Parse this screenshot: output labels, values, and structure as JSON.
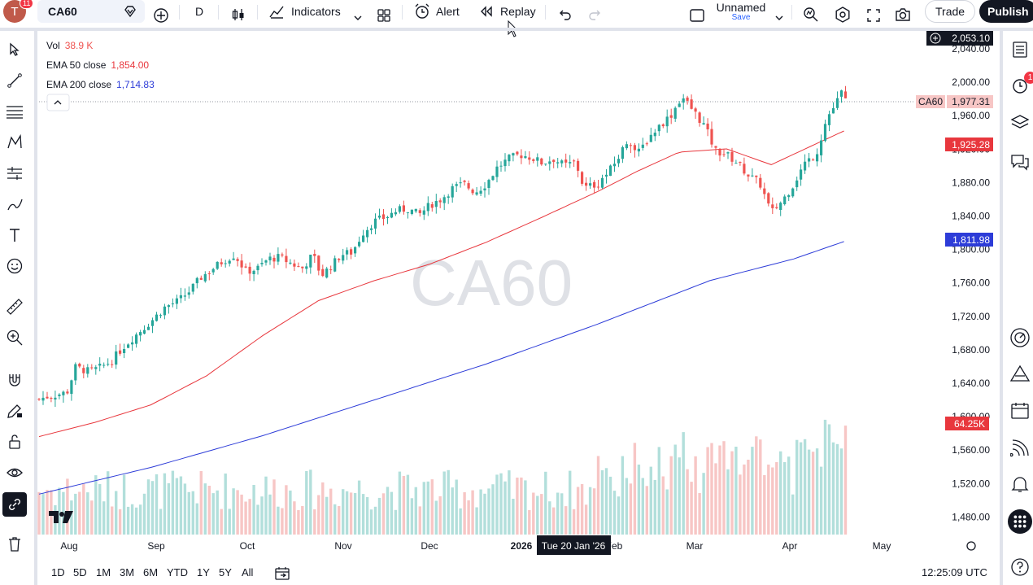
{
  "topbar": {
    "avatar_letter": "T",
    "avatar_badge": "11",
    "symbol": "CA60",
    "interval": "D",
    "indicators_label": "Indicators",
    "alert_label": "Alert",
    "replay_label": "Replay",
    "layout_name": "Unnamed",
    "layout_save": "Save",
    "trade_label": "Trade",
    "publish_label": "Publish"
  },
  "legend": {
    "vol_label": "Vol",
    "vol_value": "38.9 K",
    "ema50_label": "EMA 50 close",
    "ema50_value": "1,854.00",
    "ema200_label": "EMA 200 close",
    "ema200_value": "1,714.83"
  },
  "watermark": "CA60",
  "colors": {
    "up": "#26a69a",
    "down": "#ef5350",
    "ema50": "#e8373d",
    "ema200": "#2d3cd8",
    "vol_up": "#b2dfdb",
    "vol_down": "#f7c6c5"
  },
  "price_axis": {
    "ticks": [
      "2,040.00",
      "2,000.00",
      "1,960.00",
      "1,920.00",
      "1,880.00",
      "1,840.00",
      "1,800.00",
      "1,760.00",
      "1,720.00",
      "1,680.00",
      "1,640.00",
      "1,600.00",
      "1,560.00",
      "1,520.00",
      "1,480.00"
    ],
    "crosshair_price": "2,053.10",
    "last_symbol": "CA60",
    "last_price": "1,977.31",
    "ema50_tag": "1,925.28",
    "ema200_tag": "1,811.98",
    "vol_tag": "64.25K"
  },
  "time_axis": {
    "labels": [
      "Aug",
      "Sep",
      "Oct",
      "Nov",
      "Dec",
      "2026",
      "Feb",
      "Mar",
      "Apr",
      "May"
    ],
    "crosshair_date": "Tue 20 Jan '26"
  },
  "rightbar": {
    "alert_badge": "1"
  },
  "bottombar": {
    "ranges": [
      "1D",
      "5D",
      "1M",
      "3M",
      "6M",
      "YTD",
      "1Y",
      "5Y",
      "All"
    ],
    "clock": "12:25:09 UTC"
  },
  "chart_data": {
    "type": "candlestick",
    "symbol": "CA60",
    "interval": "D",
    "ylim": [
      1460,
      2060
    ],
    "x_range": [
      "2025-07-24",
      "2026-04-22"
    ],
    "series": [
      {
        "name": "EMA 50 close",
        "last": 1925.28,
        "shown": 1854.0,
        "points": [
          [
            0,
            1577
          ],
          [
            20,
            1594
          ],
          [
            40,
            1615
          ],
          [
            60,
            1650
          ],
          [
            80,
            1698
          ],
          [
            100,
            1740
          ],
          [
            120,
            1764
          ],
          [
            140,
            1784
          ],
          [
            160,
            1810
          ],
          [
            180,
            1840
          ],
          [
            200,
            1871
          ],
          [
            214,
            1895
          ],
          [
            229,
            1918
          ],
          [
            246,
            1922
          ],
          [
            262,
            1903
          ],
          [
            278,
            1928
          ],
          [
            289,
            1945
          ]
        ]
      },
      {
        "name": "EMA 200 close",
        "last": 1811.98,
        "shown": 1714.83,
        "points": [
          [
            0,
            1508
          ],
          [
            40,
            1540
          ],
          [
            80,
            1578
          ],
          [
            120,
            1621
          ],
          [
            160,
            1664
          ],
          [
            200,
            1712
          ],
          [
            240,
            1764
          ],
          [
            270,
            1790
          ],
          [
            289,
            1812
          ]
        ]
      }
    ],
    "close_path": [
      [
        0,
        1622
      ],
      [
        3,
        1625
      ],
      [
        6,
        1627
      ],
      [
        10,
        1630
      ],
      [
        13,
        1660
      ],
      [
        18,
        1655
      ],
      [
        22,
        1660
      ],
      [
        26,
        1668
      ],
      [
        30,
        1684
      ],
      [
        35,
        1700
      ],
      [
        40,
        1715
      ],
      [
        45,
        1732
      ],
      [
        50,
        1740
      ],
      [
        54,
        1752
      ],
      [
        58,
        1768
      ],
      [
        62,
        1778
      ],
      [
        66,
        1788
      ],
      [
        70,
        1795
      ],
      [
        74,
        1775
      ],
      [
        78,
        1778
      ],
      [
        82,
        1790
      ],
      [
        86,
        1792
      ],
      [
        90,
        1785
      ],
      [
        94,
        1778
      ],
      [
        98,
        1795
      ],
      [
        101,
        1770
      ],
      [
        105,
        1783
      ],
      [
        108,
        1795
      ],
      [
        112,
        1798
      ],
      [
        116,
        1822
      ],
      [
        120,
        1835
      ],
      [
        124,
        1840
      ],
      [
        128,
        1848
      ],
      [
        132,
        1850
      ],
      [
        136,
        1843
      ],
      [
        140,
        1855
      ],
      [
        144,
        1862
      ],
      [
        148,
        1875
      ],
      [
        152,
        1880
      ],
      [
        156,
        1870
      ],
      [
        160,
        1880
      ],
      [
        164,
        1900
      ],
      [
        168,
        1910
      ],
      [
        172,
        1915
      ],
      [
        176,
        1912
      ],
      [
        180,
        1905
      ],
      [
        184,
        1910
      ],
      [
        188,
        1902
      ],
      [
        192,
        1906
      ],
      [
        195,
        1875
      ],
      [
        200,
        1880
      ],
      [
        204,
        1895
      ],
      [
        207,
        1910
      ],
      [
        211,
        1935
      ],
      [
        214,
        1915
      ],
      [
        218,
        1935
      ],
      [
        222,
        1950
      ],
      [
        226,
        1962
      ],
      [
        230,
        1985
      ],
      [
        234,
        1968
      ],
      [
        238,
        1950
      ],
      [
        242,
        1920
      ],
      [
        246,
        1915
      ],
      [
        250,
        1905
      ],
      [
        254,
        1890
      ],
      [
        258,
        1880
      ],
      [
        262,
        1845
      ],
      [
        266,
        1860
      ],
      [
        270,
        1880
      ],
      [
        274,
        1905
      ],
      [
        278,
        1915
      ],
      [
        282,
        1960
      ],
      [
        285,
        1975
      ],
      [
        287,
        1990
      ],
      [
        289,
        1977.31
      ]
    ],
    "volume_peak": "64.25K"
  }
}
